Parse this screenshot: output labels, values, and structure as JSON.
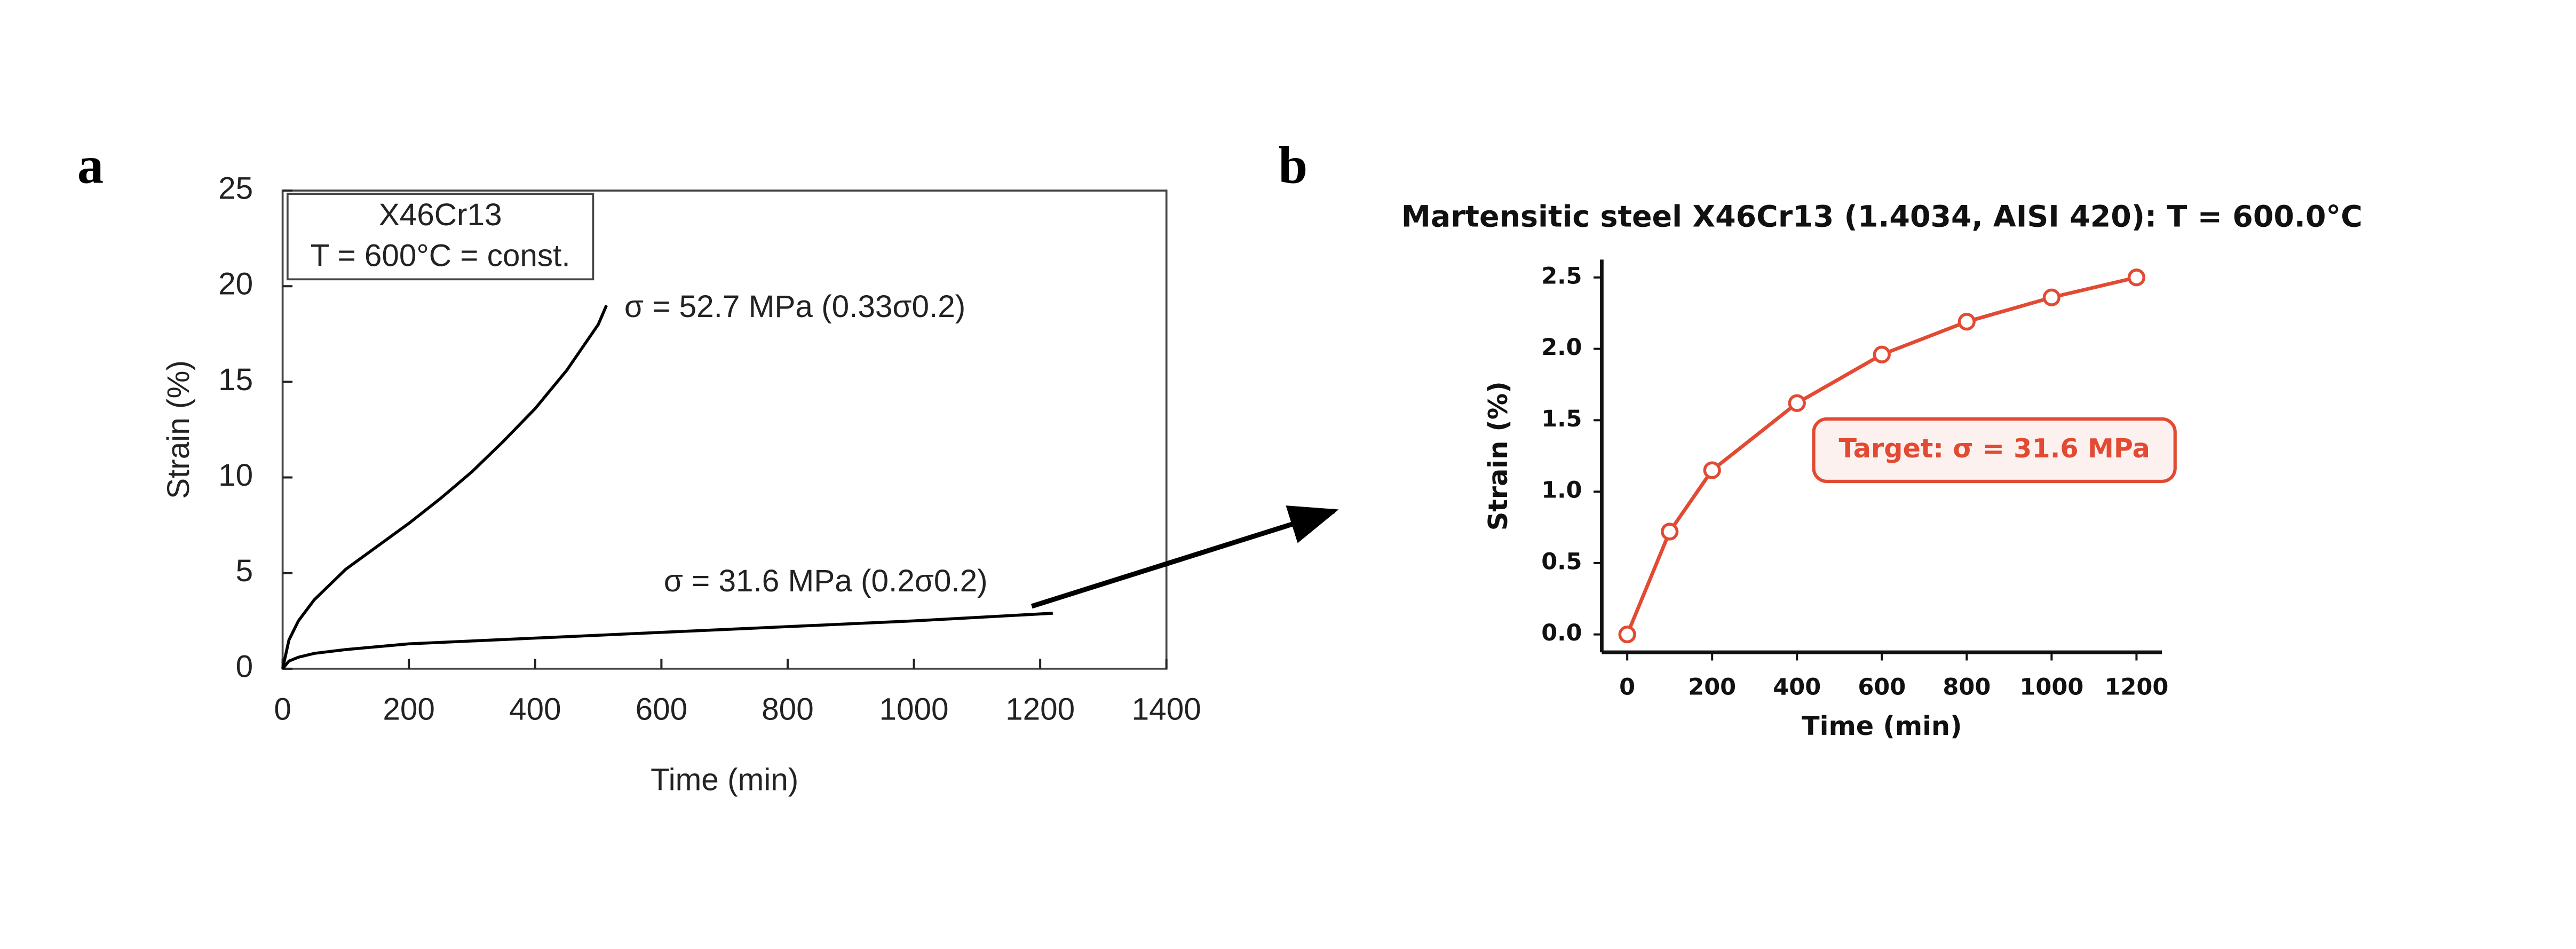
{
  "chart_data": [
    {
      "type": "line",
      "panel_label": "a",
      "xlabel": "Time (min)",
      "ylabel": "Strain (%)",
      "xlim": [
        0,
        1400
      ],
      "ylim": [
        0,
        25
      ],
      "xticks": [
        0,
        200,
        400,
        600,
        800,
        1000,
        1200,
        1400
      ],
      "yticks": [
        0,
        5,
        10,
        15,
        20,
        25
      ],
      "legend_box": [
        "X46Cr13",
        "T = 600°C = const."
      ],
      "series": [
        {
          "name": "σ = 52.7 MPa (0.33σ0.2)",
          "color": "#000000",
          "x": [
            0,
            10,
            25,
            50,
            100,
            150,
            200,
            250,
            300,
            350,
            400,
            450,
            500,
            513
          ],
          "values": [
            0,
            1.5,
            2.5,
            3.6,
            5.2,
            6.4,
            7.6,
            8.9,
            10.3,
            11.9,
            13.6,
            15.6,
            18.0,
            19.0
          ]
        },
        {
          "name": "σ = 31.6 MPa (0.2σ0.2)",
          "color": "#000000",
          "x": [
            0,
            10,
            25,
            50,
            100,
            200,
            400,
            600,
            800,
            1000,
            1220
          ],
          "values": [
            0,
            0.4,
            0.6,
            0.8,
            1.0,
            1.3,
            1.6,
            1.9,
            2.2,
            2.5,
            2.9
          ]
        }
      ]
    },
    {
      "type": "line",
      "panel_label": "b",
      "title": "Martensitic steel X46Cr13 (1.4034, AISI 420): T = 600.0°C",
      "xlabel": "Time (min)",
      "ylabel": "Strain (%)",
      "xlim": [
        -60,
        1260
      ],
      "ylim": [
        -0.125,
        2.625
      ],
      "xticks": [
        0,
        200,
        400,
        600,
        800,
        1000,
        1200
      ],
      "yticks": [
        {
          "value": 0,
          "label": "0.0"
        },
        0.5,
        {
          "value": 1,
          "label": "1.0"
        },
        1.5,
        {
          "value": 2,
          "label": "2.0"
        },
        2.5
      ],
      "annotation": "Target: σ = 31.6 MPa",
      "x": [
        0,
        100,
        200,
        400,
        600,
        800,
        1000,
        1200
      ],
      "series": [
        {
          "color": "#e24a33",
          "marker": "o",
          "values": [
            0,
            0.72,
            1.15,
            1.62,
            1.96,
            2.19,
            2.36,
            2.5
          ]
        }
      ]
    }
  ]
}
